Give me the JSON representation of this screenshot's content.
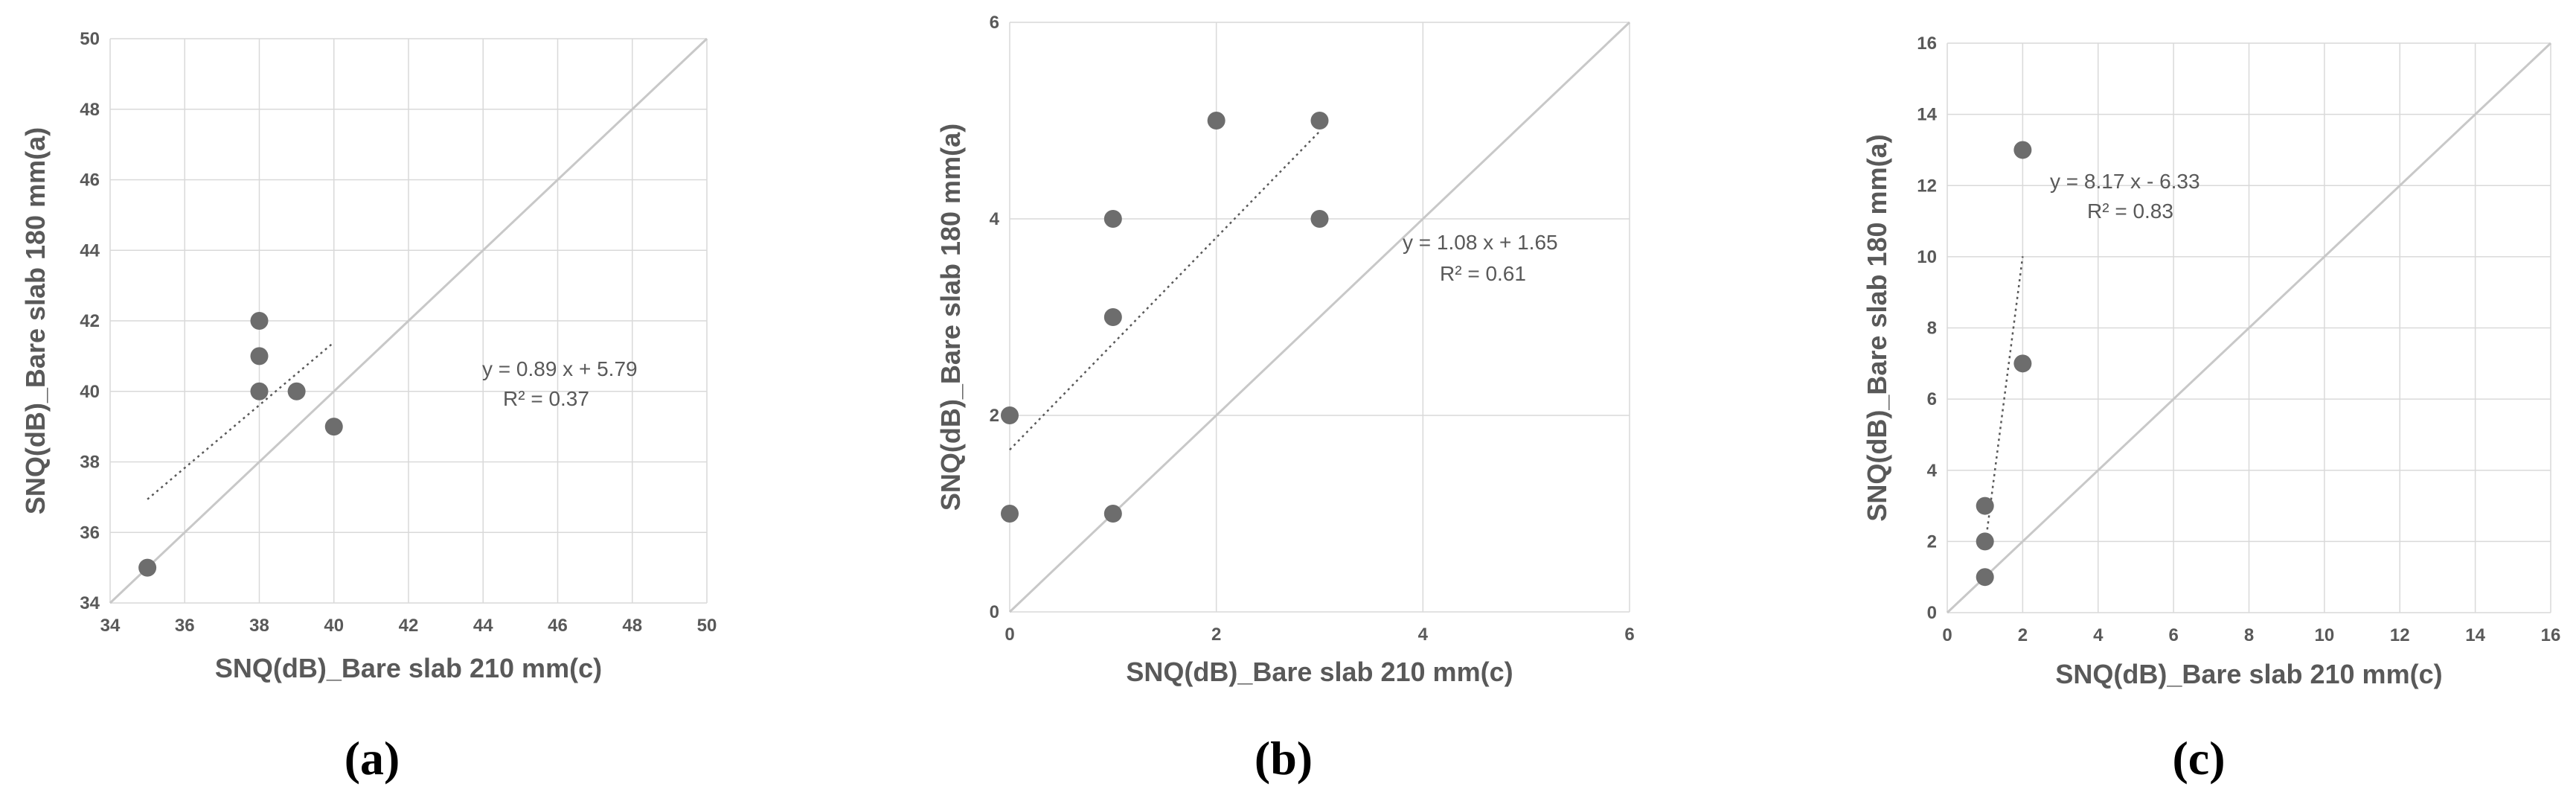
{
  "colors": {
    "grid": "#d9d9d9",
    "marker": "#6d6d6d",
    "reference_line": "#c8c8c8",
    "trendline": "#595959",
    "text": "#595959"
  },
  "chart_data": [
    {
      "type": "scatter",
      "panel_label": "(a)",
      "xlabel": "SNQ(dB)_Bare slab 210 mm(c)",
      "ylabel": "SNQ(dB)_Bare slab 180 mm(a)",
      "xlim": [
        34,
        50
      ],
      "ylim": [
        34,
        50
      ],
      "xticks": [
        34,
        36,
        38,
        40,
        42,
        44,
        46,
        48,
        50
      ],
      "yticks": [
        34,
        36,
        38,
        40,
        42,
        44,
        46,
        48,
        50
      ],
      "grid": true,
      "points": [
        {
          "x": 35,
          "y": 35
        },
        {
          "x": 38,
          "y": 40
        },
        {
          "x": 38,
          "y": 41
        },
        {
          "x": 38,
          "y": 42
        },
        {
          "x": 39,
          "y": 40
        },
        {
          "x": 40,
          "y": 39
        }
      ],
      "reference_line": {
        "from": [
          34,
          34
        ],
        "to": [
          50,
          50
        ]
      },
      "trendline": {
        "slope": 0.89,
        "intercept": 5.79,
        "x_range": [
          35,
          40
        ]
      },
      "equation": "y = 0.89 x + 5.79",
      "r_squared": "R² = 0.37"
    },
    {
      "type": "scatter",
      "panel_label": "(b)",
      "xlabel": "SNQ(dB)_Bare slab 210 mm(c)",
      "ylabel": "SNQ(dB)_Bare slab 180 mm(a)",
      "xlim": [
        0,
        6
      ],
      "ylim": [
        0,
        6
      ],
      "xticks": [
        0,
        2,
        4,
        6
      ],
      "yticks": [
        0,
        2,
        4,
        6
      ],
      "grid": true,
      "points": [
        {
          "x": 0,
          "y": 1
        },
        {
          "x": 0,
          "y": 2
        },
        {
          "x": 1,
          "y": 1
        },
        {
          "x": 1,
          "y": 3
        },
        {
          "x": 1,
          "y": 4
        },
        {
          "x": 2,
          "y": 5
        },
        {
          "x": 3,
          "y": 4
        },
        {
          "x": 3,
          "y": 5
        }
      ],
      "reference_line": {
        "from": [
          0,
          0
        ],
        "to": [
          6,
          6
        ]
      },
      "trendline": {
        "slope": 1.08,
        "intercept": 1.65,
        "x_range": [
          0,
          3
        ]
      },
      "equation": "y = 1.08 x + 1.65",
      "r_squared": "R² = 0.61"
    },
    {
      "type": "scatter",
      "panel_label": "(c)",
      "xlabel": "SNQ(dB)_Bare slab 210 mm(c)",
      "ylabel": "SNQ(dB)_Bare slab 180 mm(a)",
      "xlim": [
        0,
        16
      ],
      "ylim": [
        0,
        16
      ],
      "xticks": [
        0,
        2,
        4,
        6,
        8,
        10,
        12,
        14,
        16
      ],
      "yticks": [
        0,
        2,
        4,
        6,
        8,
        10,
        12,
        14,
        16
      ],
      "grid": true,
      "points": [
        {
          "x": 1,
          "y": 1
        },
        {
          "x": 1,
          "y": 2
        },
        {
          "x": 1,
          "y": 3
        },
        {
          "x": 2,
          "y": 7
        },
        {
          "x": 2,
          "y": 13
        }
      ],
      "reference_line": {
        "from": [
          0,
          0
        ],
        "to": [
          16,
          16
        ]
      },
      "trendline": {
        "slope": 8.17,
        "intercept": -6.33,
        "x_range": [
          1,
          2
        ]
      },
      "equation": "y = 8.17 x - 6.33",
      "r_squared": "R² = 0.83"
    }
  ]
}
